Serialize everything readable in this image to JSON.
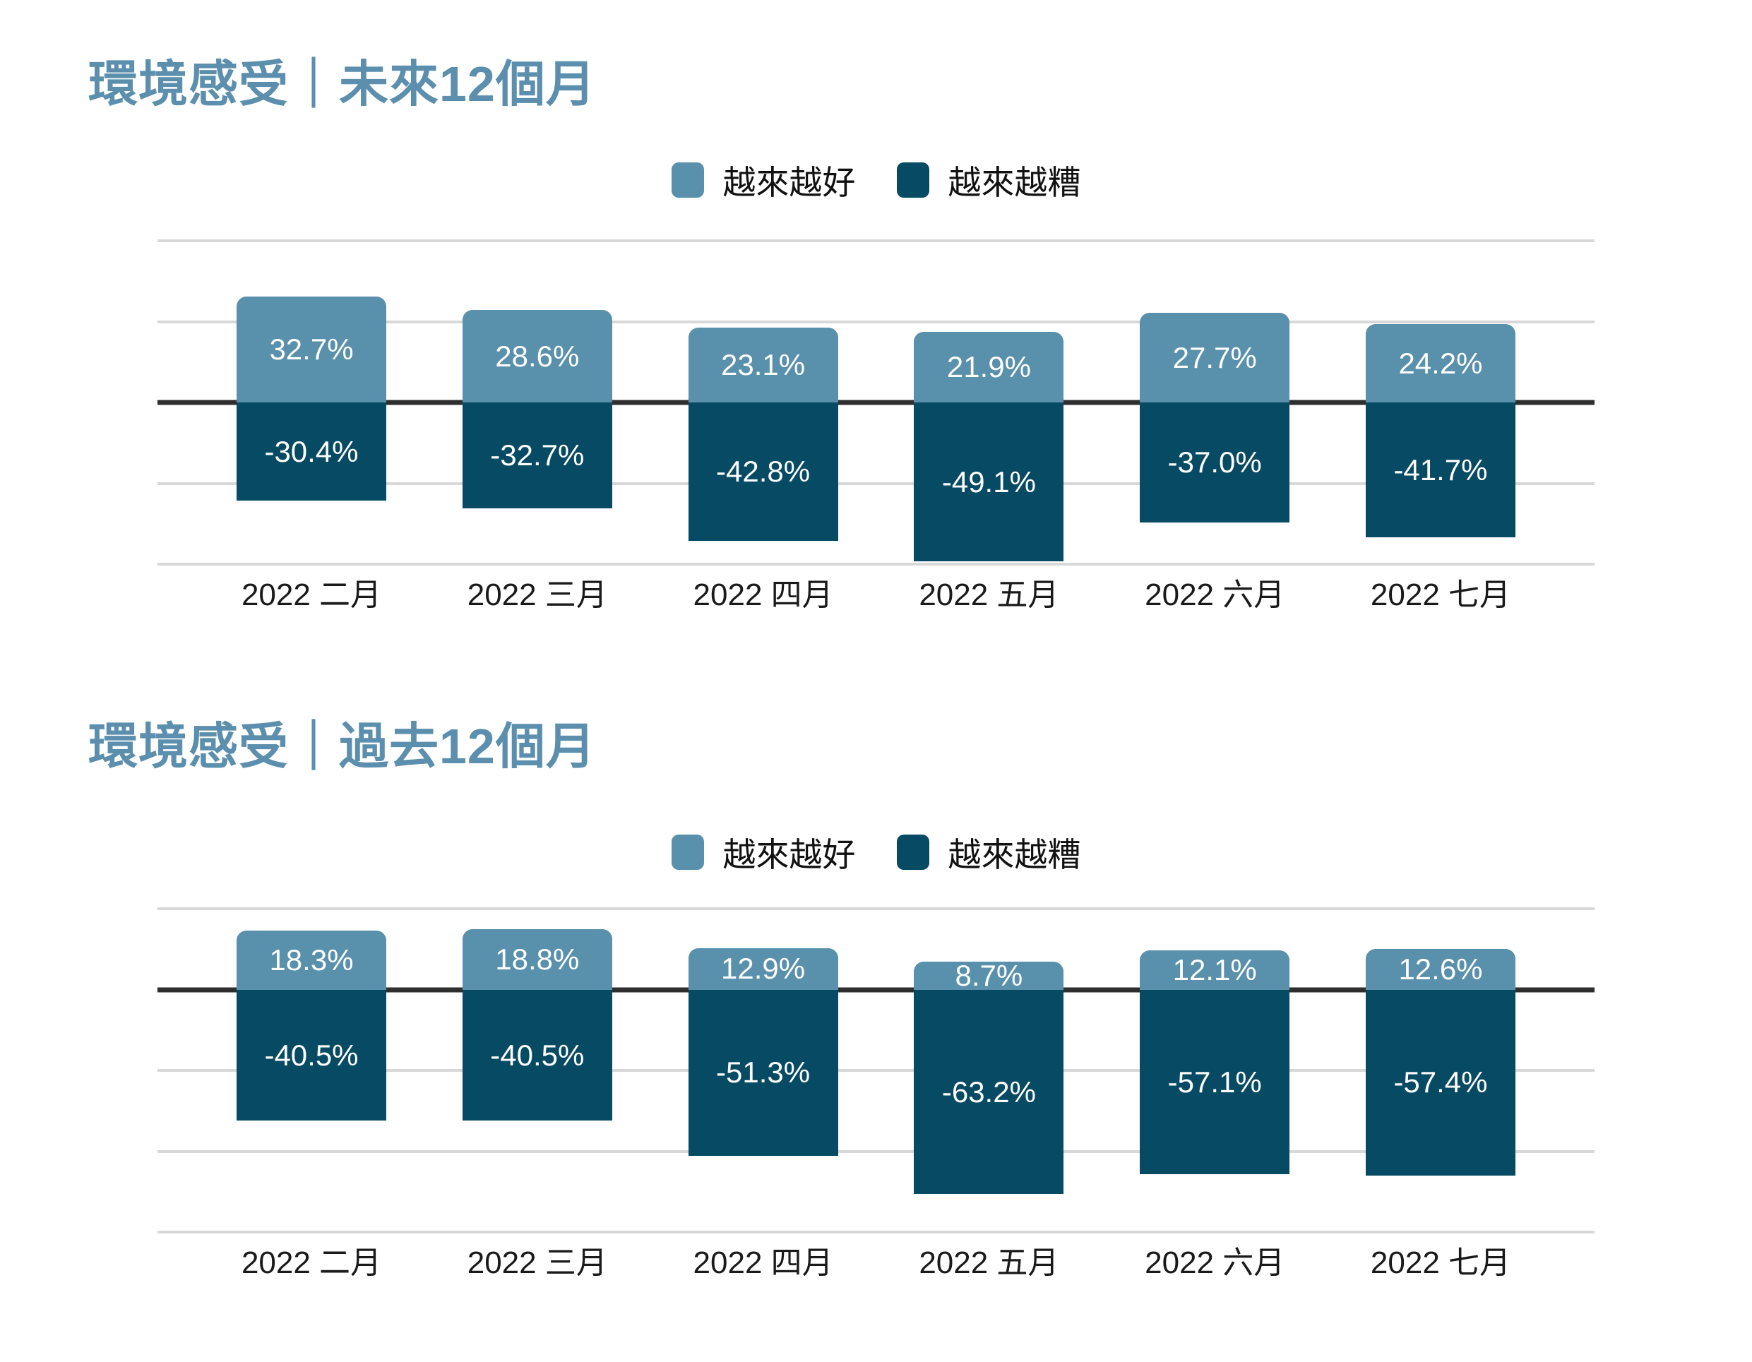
{
  "colors": {
    "background": "#ffffff",
    "positive": "#5990ab",
    "negative": "#074a63",
    "title": "#5b8fad",
    "gridline": "#d8d8d8",
    "zero_line": "#2e2e2e",
    "bar_label": "#ffffff",
    "axis_label": "#1a1a1a",
    "legend_label": "#111111"
  },
  "chart_data": [
    {
      "type": "bar",
      "title": "環境感受｜未來12個月",
      "legend": [
        "越來越好",
        "越來越糟"
      ],
      "legend_position": "top-center",
      "categories": [
        "2022 二月",
        "2022 三月",
        "2022 四月",
        "2022 五月",
        "2022 六月",
        "2022 七月"
      ],
      "series": [
        {
          "name": "越來越好",
          "values": [
            32.7,
            28.6,
            23.1,
            21.9,
            27.7,
            24.2
          ]
        },
        {
          "name": "越來越糟",
          "values": [
            -30.4,
            -32.7,
            -42.8,
            -49.1,
            -37.0,
            -41.7
          ]
        }
      ],
      "value_labels": [
        [
          "32.7%",
          "28.6%",
          "23.1%",
          "21.9%",
          "27.7%",
          "24.2%"
        ],
        [
          "-30.4%",
          "-32.7%",
          "-42.8%",
          "-49.1%",
          "-37.0%",
          "-41.7%"
        ]
      ],
      "ylim": [
        -50,
        50
      ],
      "grid_step": 25,
      "grid": true,
      "xlabel": "",
      "ylabel": ""
    },
    {
      "type": "bar",
      "title": "環境感受｜過去12個月",
      "legend": [
        "越來越好",
        "越來越糟"
      ],
      "legend_position": "top-center",
      "categories": [
        "2022 二月",
        "2022 三月",
        "2022 四月",
        "2022 五月",
        "2022 六月",
        "2022 七月"
      ],
      "series": [
        {
          "name": "越來越好",
          "values": [
            18.3,
            18.8,
            12.9,
            8.7,
            12.1,
            12.6
          ]
        },
        {
          "name": "越來越糟",
          "values": [
            -40.5,
            -40.5,
            -51.3,
            -63.2,
            -57.1,
            -57.4
          ]
        }
      ],
      "value_labels": [
        [
          "18.3%",
          "18.8%",
          "12.9%",
          "8.7%",
          "12.1%",
          "12.6%"
        ],
        [
          "-40.5%",
          "-40.5%",
          "-51.3%",
          "-63.2%",
          "-57.1%",
          "-57.4%"
        ]
      ],
      "ylim": [
        -75,
        25
      ],
      "grid_step": 25,
      "grid": true,
      "xlabel": "",
      "ylabel": ""
    }
  ]
}
